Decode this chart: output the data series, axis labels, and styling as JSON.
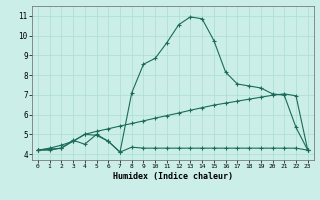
{
  "xlabel": "Humidex (Indice chaleur)",
  "bg_color": "#cceee8",
  "grid_color": "#aaddcc",
  "line_color": "#1a6b5a",
  "xlim": [
    -0.5,
    23.5
  ],
  "ylim": [
    3.7,
    11.5
  ],
  "xticks": [
    0,
    1,
    2,
    3,
    4,
    5,
    6,
    7,
    8,
    9,
    10,
    11,
    12,
    13,
    14,
    15,
    16,
    17,
    18,
    19,
    20,
    21,
    22,
    23
  ],
  "yticks": [
    4,
    5,
    6,
    7,
    8,
    9,
    10,
    11
  ],
  "line1_x": [
    0,
    1,
    2,
    3,
    4,
    5,
    6,
    7,
    8,
    9,
    10,
    11,
    12,
    13,
    14,
    15,
    16,
    17,
    18,
    19,
    20,
    21,
    22,
    23
  ],
  "line1_y": [
    4.2,
    4.25,
    4.3,
    4.7,
    4.5,
    5.0,
    4.65,
    4.1,
    4.35,
    4.3,
    4.3,
    4.3,
    4.3,
    4.3,
    4.3,
    4.3,
    4.3,
    4.3,
    4.3,
    4.3,
    4.3,
    4.3,
    4.3,
    4.2
  ],
  "line2_x": [
    0,
    1,
    2,
    3,
    4,
    5,
    6,
    7,
    8,
    9,
    10,
    11,
    12,
    13,
    14,
    15,
    16,
    17,
    18,
    19,
    20,
    21,
    22,
    23
  ],
  "line2_y": [
    4.2,
    4.3,
    4.45,
    4.65,
    5.0,
    5.15,
    5.28,
    5.42,
    5.55,
    5.68,
    5.82,
    5.95,
    6.08,
    6.22,
    6.35,
    6.48,
    6.58,
    6.68,
    6.78,
    6.88,
    6.98,
    7.05,
    6.95,
    4.2
  ],
  "line3_x": [
    0,
    1,
    2,
    3,
    4,
    5,
    6,
    7,
    8,
    9,
    10,
    11,
    12,
    13,
    14,
    15,
    16,
    17,
    18,
    19,
    20,
    21,
    22,
    23
  ],
  "line3_y": [
    4.2,
    4.2,
    4.3,
    4.65,
    5.0,
    4.95,
    4.65,
    4.1,
    7.1,
    8.55,
    8.85,
    9.65,
    10.55,
    10.95,
    10.85,
    9.75,
    8.15,
    7.55,
    7.45,
    7.35,
    7.05,
    6.98,
    5.35,
    4.2
  ]
}
